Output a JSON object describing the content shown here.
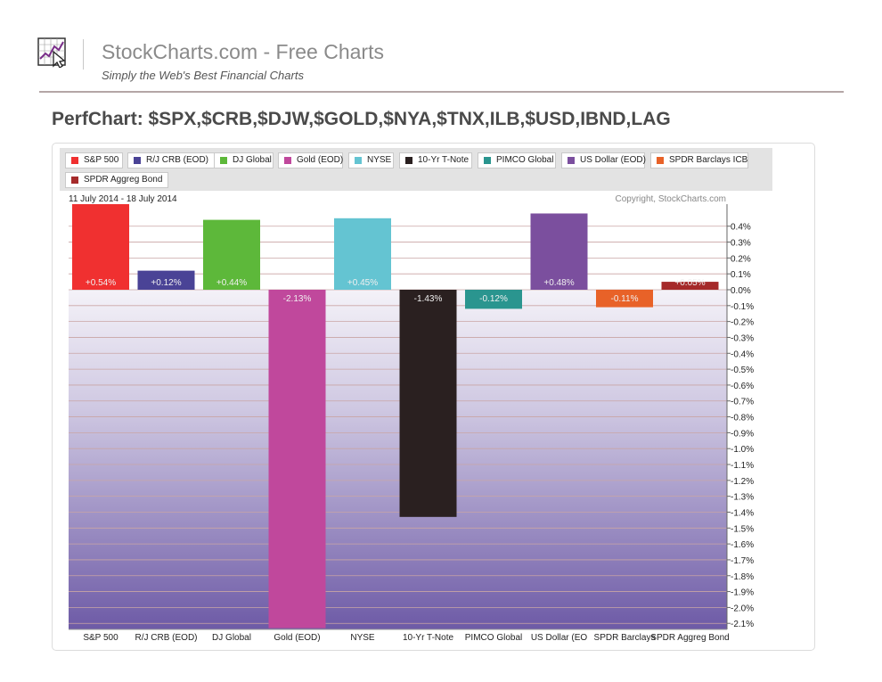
{
  "header": {
    "site_title": "StockCharts.com - Free Charts",
    "tagline": "Simply the Web's Best Financial Charts",
    "logo_icon": "chart-cursor-logo-icon"
  },
  "page_heading": "PerfChart: $SPX,$CRB,$DJW,$GOLD,$NYA,$TNX,ILB,$USD,IBND,LAG",
  "chart_data": {
    "type": "bar",
    "date_range": "11 July 2014 - 18 July 2014",
    "copyright": "Copyright, StockCharts.com",
    "ylim": [
      -2.15,
      0.55
    ],
    "y_ticks": [
      0.4,
      0.3,
      0.2,
      0.1,
      0.0,
      -0.1,
      -0.2,
      -0.3,
      -0.4,
      -0.5,
      -0.6,
      -0.7,
      -0.8,
      -0.9,
      -1.0,
      -1.1,
      -1.2,
      -1.3,
      -1.4,
      -1.5,
      -1.6,
      -1.7,
      -1.8,
      -1.9,
      -2.0,
      -2.1
    ],
    "legend": [
      "S&P 500",
      "R/J CRB (EOD)",
      "DJ Global",
      "Gold (EOD)",
      "NYSE",
      "10-Yr T-Note",
      "PIMCO Global",
      "US Dollar (EOD)",
      "SPDR Barclays ICB",
      "SPDR Aggreg Bond"
    ],
    "categories": [
      "S&P 500",
      "R/J CRB (EOD)",
      "DJ Global",
      "Gold (EOD)",
      "NYSE",
      "10-Yr T-Note",
      "PIMCO Global",
      "US Dollar (EO",
      "SPDR Barclays",
      "SPDR Aggreg Bond"
    ],
    "values": [
      0.54,
      0.12,
      0.44,
      -2.13,
      0.45,
      -1.43,
      -0.12,
      0.48,
      -0.11,
      0.05
    ],
    "value_labels": [
      "+0.54%",
      "+0.12%",
      "+0.44%",
      "-2.13%",
      "+0.45%",
      "-1.43%",
      "-0.12%",
      "+0.48%",
      "-0.11%",
      "+0.05%"
    ],
    "colors": [
      "#f03030",
      "#4a4396",
      "#5db83a",
      "#c0489c",
      "#64c4d2",
      "#2a2020",
      "#2a958f",
      "#7b4f9e",
      "#e86228",
      "#a52a2a"
    ],
    "grid": true
  }
}
